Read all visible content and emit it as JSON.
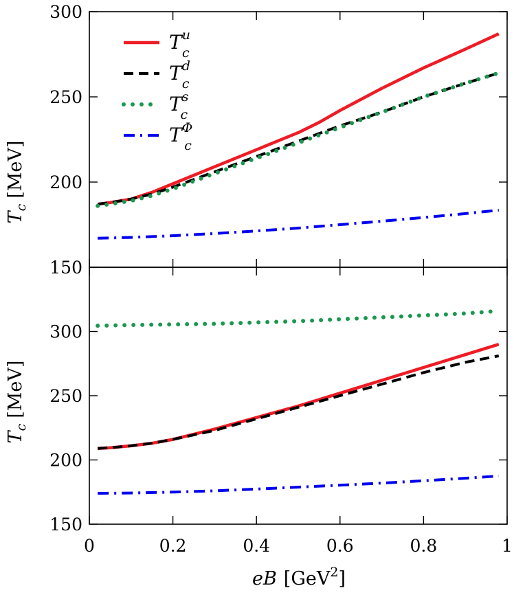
{
  "chart_data": [
    {
      "type": "line",
      "panel": "top",
      "xlim": [
        0,
        1
      ],
      "ylim": [
        150,
        300
      ],
      "xlabel": "",
      "ylabel": {
        "symbol": "T",
        "subscript": "c",
        "unit": "[MeV]"
      },
      "yticks": [
        150,
        200,
        250,
        300
      ],
      "grid": false,
      "legend_placement": "top-left",
      "series": [
        {
          "name": {
            "symbol": "T",
            "subscript": "c",
            "superscript": "u"
          },
          "color": "#ee1c25",
          "style": "solid",
          "x": [
            0.02,
            0.05,
            0.1,
            0.15,
            0.2,
            0.3,
            0.4,
            0.5,
            0.55,
            0.6,
            0.7,
            0.8,
            0.9,
            0.98
          ],
          "y": [
            187,
            188,
            190,
            194,
            199,
            209,
            219,
            229,
            235,
            242,
            255,
            267,
            278,
            287
          ]
        },
        {
          "name": {
            "symbol": "T",
            "subscript": "c",
            "superscript": "d"
          },
          "color": "#000000",
          "style": "dashed",
          "x": [
            0.02,
            0.05,
            0.1,
            0.15,
            0.2,
            0.3,
            0.4,
            0.5,
            0.6,
            0.7,
            0.8,
            0.9,
            0.98
          ],
          "y": [
            187,
            188,
            190,
            193,
            197,
            206,
            215,
            224,
            233,
            241,
            250,
            258,
            264
          ]
        },
        {
          "name": {
            "symbol": "T",
            "subscript": "c",
            "superscript": "s"
          },
          "color": "#1a9850",
          "style": "dotted",
          "x": [
            0.02,
            0.05,
            0.1,
            0.15,
            0.2,
            0.3,
            0.4,
            0.5,
            0.6,
            0.7,
            0.8,
            0.9,
            0.98
          ],
          "y": [
            186,
            187,
            189,
            192,
            196,
            205,
            214,
            223,
            232,
            241,
            250,
            258,
            264
          ]
        },
        {
          "name": {
            "symbol": "T",
            "subscript": "c",
            "superscript": "Φ"
          },
          "color": "#0000ee",
          "style": "dash-dot",
          "x": [
            0.02,
            0.1,
            0.2,
            0.3,
            0.4,
            0.5,
            0.6,
            0.7,
            0.8,
            0.9,
            0.98
          ],
          "y": [
            167,
            167.5,
            168.5,
            169.8,
            171.3,
            173,
            175,
            177,
            179.2,
            181.5,
            183.5
          ]
        }
      ]
    },
    {
      "type": "line",
      "panel": "bottom",
      "xlim": [
        0,
        1
      ],
      "ylim": [
        150,
        350
      ],
      "xlabel": {
        "symbol": "eB",
        "unit_prefix": "[GeV",
        "unit_sup": "2",
        "unit_suffix": "]"
      },
      "ylabel": {
        "symbol": "T",
        "subscript": "c",
        "unit": "[MeV]"
      },
      "xticks": [
        0,
        0.2,
        0.4,
        0.6,
        0.8,
        1
      ],
      "xtick_labels": [
        "0",
        "0.2",
        "0.4",
        "0.6",
        "0.8",
        "1"
      ],
      "yticks": [
        150,
        200,
        250,
        300
      ],
      "grid": false,
      "series": [
        {
          "name": {
            "symbol": "T",
            "subscript": "c",
            "superscript": "u"
          },
          "color": "#ee1c25",
          "style": "solid",
          "x": [
            0.02,
            0.05,
            0.1,
            0.15,
            0.2,
            0.3,
            0.4,
            0.5,
            0.6,
            0.7,
            0.8,
            0.9,
            0.98
          ],
          "y": [
            209,
            209.5,
            211,
            213,
            216,
            224,
            233,
            242,
            252,
            262,
            272,
            282,
            290
          ]
        },
        {
          "name": {
            "symbol": "T",
            "subscript": "c",
            "superscript": "d"
          },
          "color": "#000000",
          "style": "dashed",
          "x": [
            0.02,
            0.05,
            0.1,
            0.15,
            0.2,
            0.3,
            0.4,
            0.5,
            0.6,
            0.7,
            0.8,
            0.9,
            0.98
          ],
          "y": [
            209,
            209.5,
            211,
            213,
            216,
            223,
            232,
            241,
            250,
            259,
            268,
            276,
            281
          ]
        },
        {
          "name": {
            "symbol": "T",
            "subscript": "c",
            "superscript": "s"
          },
          "color": "#1a9850",
          "style": "dotted",
          "x": [
            0.02,
            0.1,
            0.2,
            0.3,
            0.4,
            0.5,
            0.6,
            0.7,
            0.8,
            0.9,
            0.98
          ],
          "y": [
            304.5,
            305,
            305.5,
            306,
            307,
            308,
            309.5,
            311,
            312.5,
            314,
            316
          ]
        },
        {
          "name": {
            "symbol": "T",
            "subscript": "c",
            "superscript": "Φ"
          },
          "color": "#0000ee",
          "style": "dash-dot",
          "x": [
            0.02,
            0.1,
            0.2,
            0.3,
            0.4,
            0.5,
            0.6,
            0.7,
            0.8,
            0.9,
            0.98
          ],
          "y": [
            174,
            174.3,
            175,
            176,
            177.3,
            178.8,
            180.3,
            182,
            183.8,
            185.8,
            187.5
          ]
        }
      ]
    }
  ]
}
